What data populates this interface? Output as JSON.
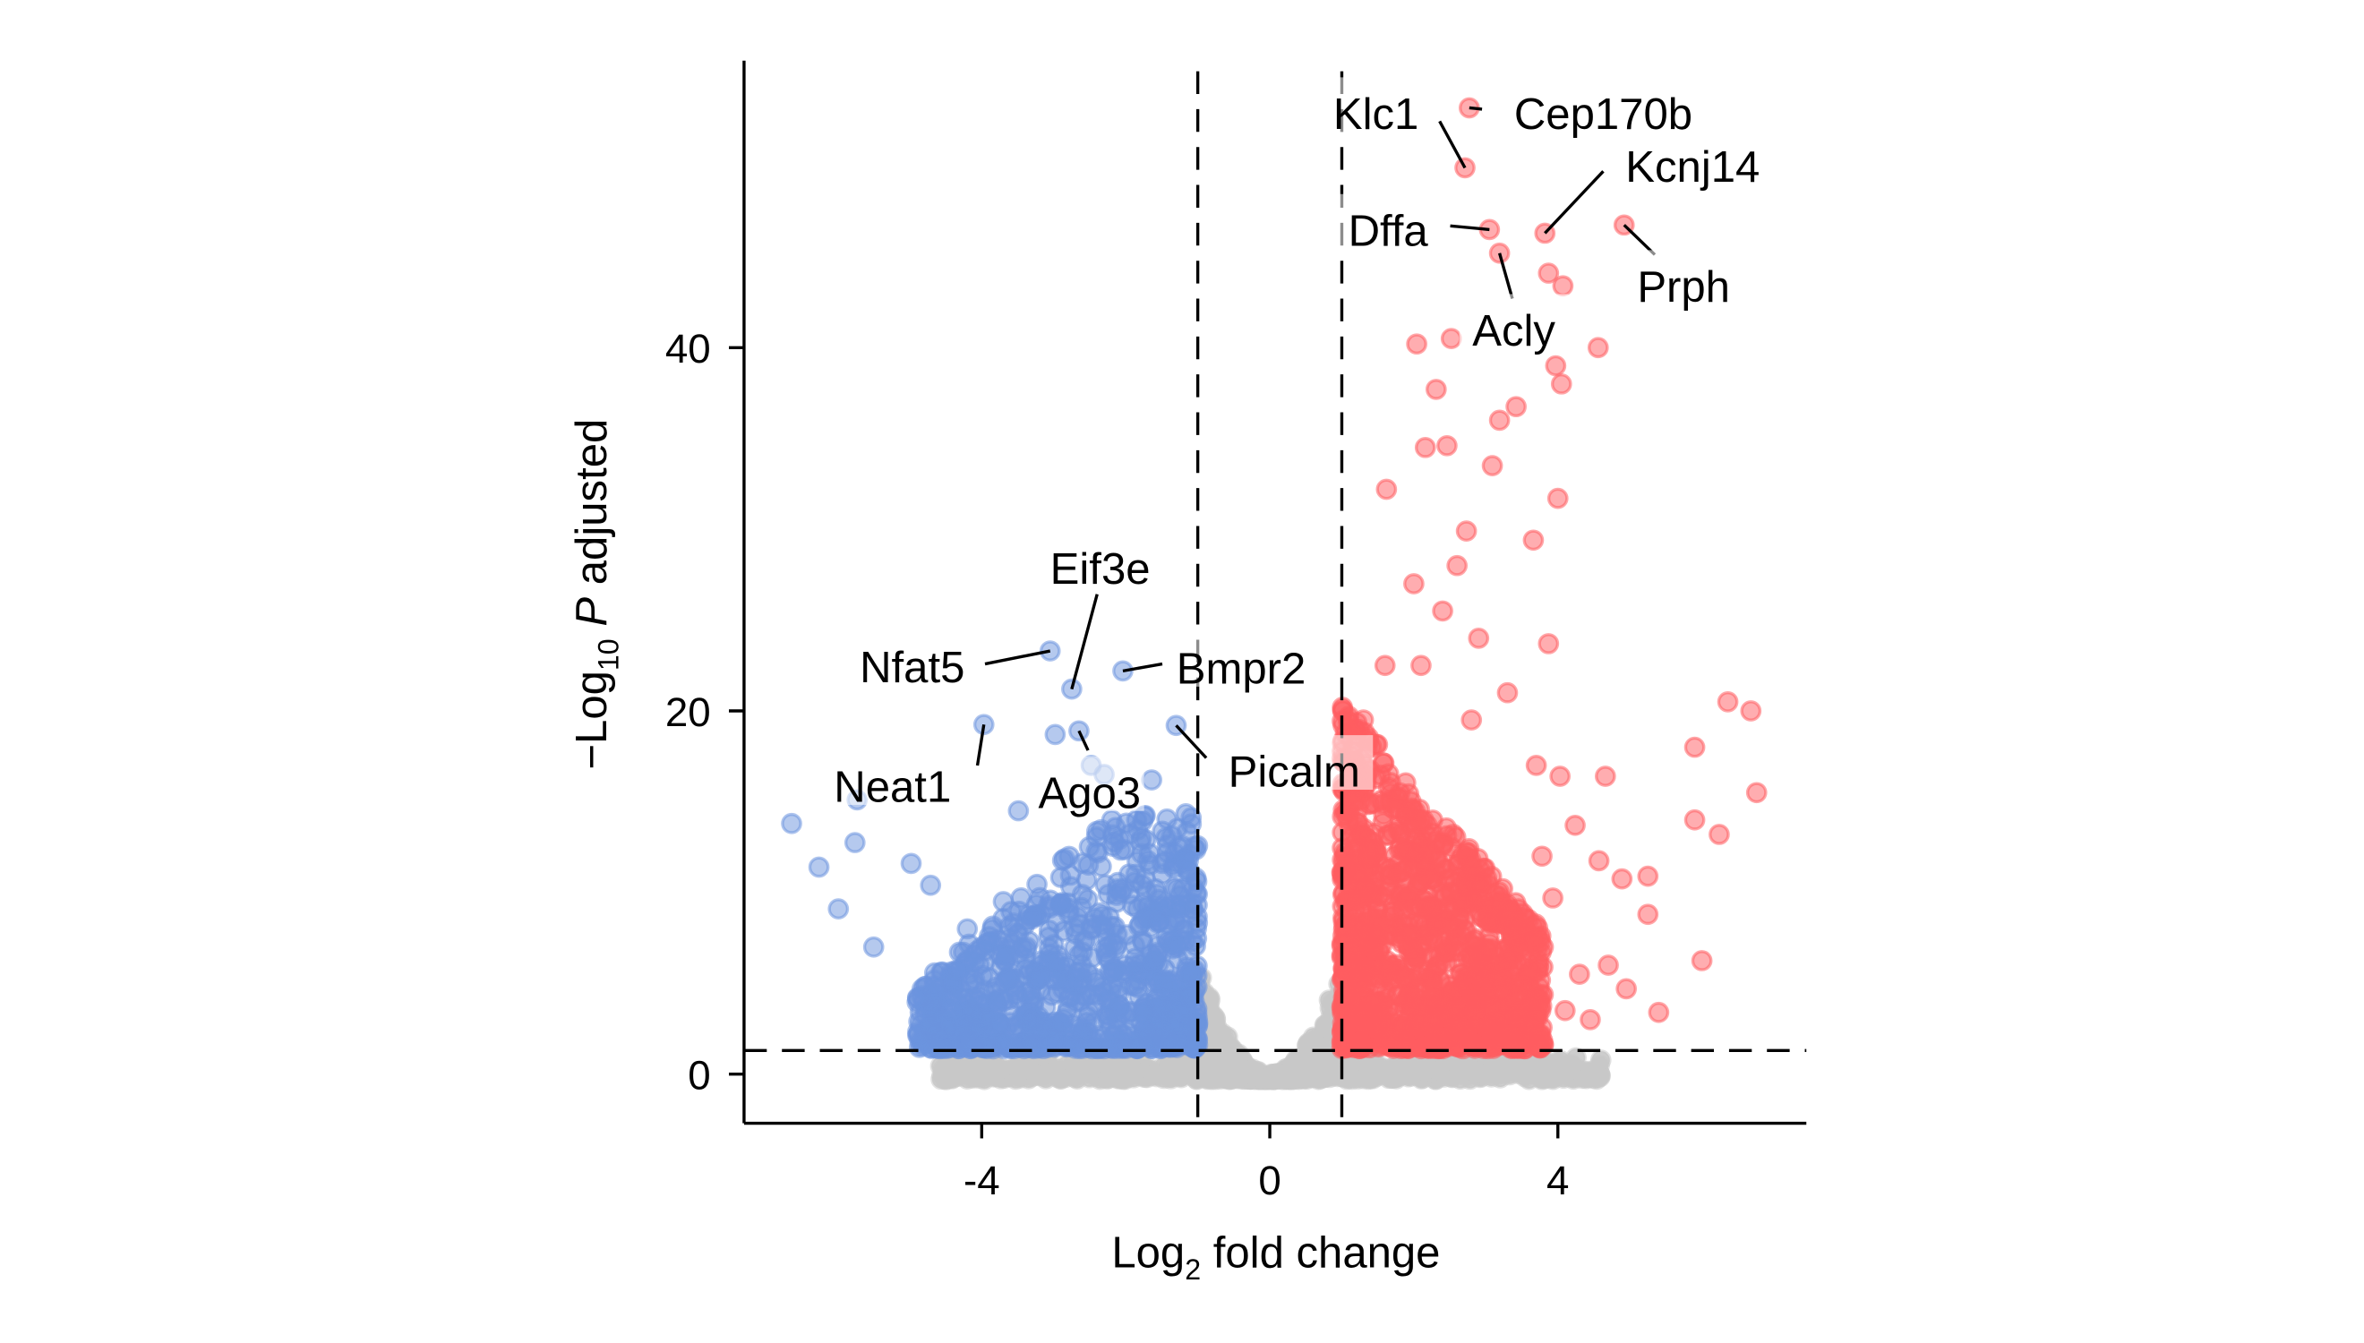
{
  "chart_data": {
    "type": "scatter",
    "title": "",
    "xlabel": {
      "main": "Log",
      "sub": "2",
      "rest": " fold change"
    },
    "ylabel": {
      "prefix": "−Log",
      "sub": "10",
      "italic": "P",
      "rest": " adjusted"
    },
    "xlim": [
      -7.3,
      7.45
    ],
    "ylim": [
      -2.7,
      55.8
    ],
    "x_ticks": [
      -4,
      0,
      4
    ],
    "x_tick_labels": [
      "-4",
      "0",
      "4"
    ],
    "y_ticks": [
      0,
      20,
      40
    ],
    "y_tick_labels": [
      "0",
      "20",
      "40"
    ],
    "grid": false,
    "legend": "none",
    "thresholds": {
      "log2fc": [
        -1,
        1
      ],
      "neg_log10_padj": 1.3
    },
    "colors": {
      "up": "#ff5c61",
      "down": "#6b94de",
      "ns": "#c8c8c8",
      "threshold_line": "#000000"
    },
    "labeled_genes": [
      {
        "gene": "Cep170b",
        "x": 2.77,
        "y": 53.2,
        "group": "up"
      },
      {
        "gene": "Klc1",
        "x": 2.71,
        "y": 49.9,
        "group": "up"
      },
      {
        "gene": "Dffa",
        "x": 3.05,
        "y": 46.5,
        "group": "up"
      },
      {
        "gene": "Acly",
        "x": 3.19,
        "y": 45.2,
        "group": "up"
      },
      {
        "gene": "Kcnj14",
        "x": 3.82,
        "y": 46.3,
        "group": "up"
      },
      {
        "gene": "Prph",
        "x": 4.92,
        "y": 46.75,
        "group": "up"
      },
      {
        "gene": "Nfat5",
        "x": -3.05,
        "y": 23.3,
        "group": "down"
      },
      {
        "gene": "Eif3e",
        "x": -2.75,
        "y": 21.2,
        "group": "down"
      },
      {
        "gene": "Bmpr2",
        "x": -2.04,
        "y": 22.2,
        "group": "down"
      },
      {
        "gene": "Neat1",
        "x": -3.97,
        "y": 19.25,
        "group": "down"
      },
      {
        "gene": "Ago3",
        "x": -2.65,
        "y": 18.9,
        "group": "down"
      },
      {
        "gene": "Picalm",
        "x": -1.3,
        "y": 19.2,
        "group": "down"
      }
    ],
    "other_points": {
      "up": [
        [
          6.36,
          20.5
        ],
        [
          6.68,
          20
        ],
        [
          6.76,
          15.5
        ],
        [
          5.9,
          18
        ],
        [
          5.9,
          14
        ],
        [
          6.24,
          13.2
        ],
        [
          6.0,
          6.25
        ],
        [
          5.25,
          10.9
        ],
        [
          5.25,
          8.8
        ],
        [
          5.4,
          3.4
        ],
        [
          4.66,
          16.4
        ],
        [
          4.03,
          16.4
        ],
        [
          4.24,
          13.7
        ],
        [
          3.78,
          12
        ],
        [
          3.93,
          9.7
        ],
        [
          4.57,
          11.75
        ],
        [
          4.89,
          10.75
        ],
        [
          3.87,
          23.7
        ],
        [
          4.0,
          31.7
        ],
        [
          4.05,
          38
        ],
        [
          4.56,
          40
        ],
        [
          3.97,
          39
        ],
        [
          3.87,
          44.1
        ],
        [
          4.07,
          43.4
        ],
        [
          1.62,
          32.2
        ],
        [
          3.42,
          36.75
        ],
        [
          3.19,
          36
        ],
        [
          2.04,
          40.2
        ],
        [
          2.52,
          40.5
        ],
        [
          2.31,
          37.7
        ],
        [
          2.46,
          34.6
        ],
        [
          2.16,
          34.5
        ],
        [
          3.09,
          33.5
        ],
        [
          3.66,
          29.4
        ],
        [
          2.73,
          29.9
        ],
        [
          2.6,
          28
        ],
        [
          2.0,
          27
        ],
        [
          2.4,
          25.5
        ],
        [
          2.9,
          24
        ],
        [
          1.6,
          22.5
        ],
        [
          2.1,
          22.5
        ],
        [
          3.3,
          21
        ],
        [
          2.8,
          19.5
        ],
        [
          1.3,
          19.5
        ],
        [
          3.7,
          17
        ],
        [
          4.3,
          5.5
        ],
        [
          4.7,
          6
        ],
        [
          4.95,
          4.7
        ],
        [
          4.1,
          3.5
        ],
        [
          4.45,
          3
        ]
      ],
      "down": [
        [
          -6.64,
          13.8
        ],
        [
          -6.26,
          11.4
        ],
        [
          -5.73,
          15.1
        ],
        [
          -5.99,
          9.1
        ],
        [
          -5.76,
          12.75
        ],
        [
          -4.98,
          11.6
        ],
        [
          -4.71,
          10.4
        ],
        [
          -3.49,
          14.5
        ],
        [
          -1.64,
          16.2
        ],
        [
          -1.07,
          9.1
        ],
        [
          -2.98,
          18.7
        ],
        [
          -2.48,
          17
        ],
        [
          -2.3,
          16.5
        ],
        [
          -1.8,
          12.8
        ],
        [
          -5.5,
          7
        ],
        [
          -4.2,
          8
        ],
        [
          -3.7,
          9.5
        ]
      ]
    }
  }
}
